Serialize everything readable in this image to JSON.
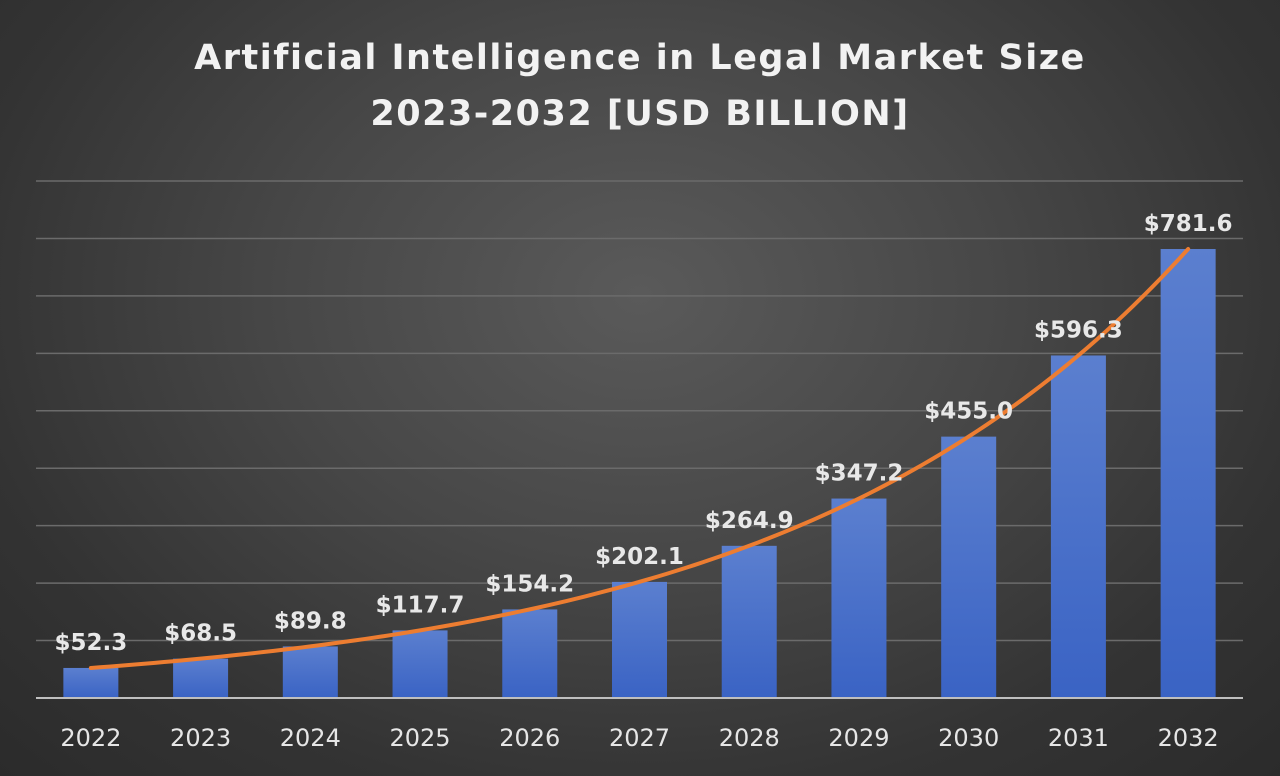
{
  "chart_data": {
    "type": "bar",
    "title_line_1": "Artificial Intelligence in Legal Market Size",
    "title_line_2": "2023-2032 [USD BILLION]",
    "xlabel": "",
    "ylabel": "",
    "categories": [
      "2022",
      "2023",
      "2024",
      "2025",
      "2026",
      "2027",
      "2028",
      "2029",
      "2030",
      "2031",
      "2032"
    ],
    "values": [
      52.3,
      68.5,
      89.8,
      117.7,
      154.2,
      202.1,
      264.9,
      347.2,
      455.0,
      596.3,
      781.6
    ],
    "data_labels": [
      "$52.3",
      "$68.5",
      "$89.8",
      "$117.7",
      "$154.2",
      "$202.1",
      "$264.9",
      "$347.2",
      "$455.0",
      "$596.3",
      "$781.6"
    ],
    "ylim": [
      0,
      900
    ],
    "grid": true,
    "legend": "none",
    "trendline": "exponential",
    "colors": {
      "bar_top": "#5b7fcf",
      "bar_bottom": "#3a63c4",
      "trendline": "#ed7d31"
    }
  }
}
